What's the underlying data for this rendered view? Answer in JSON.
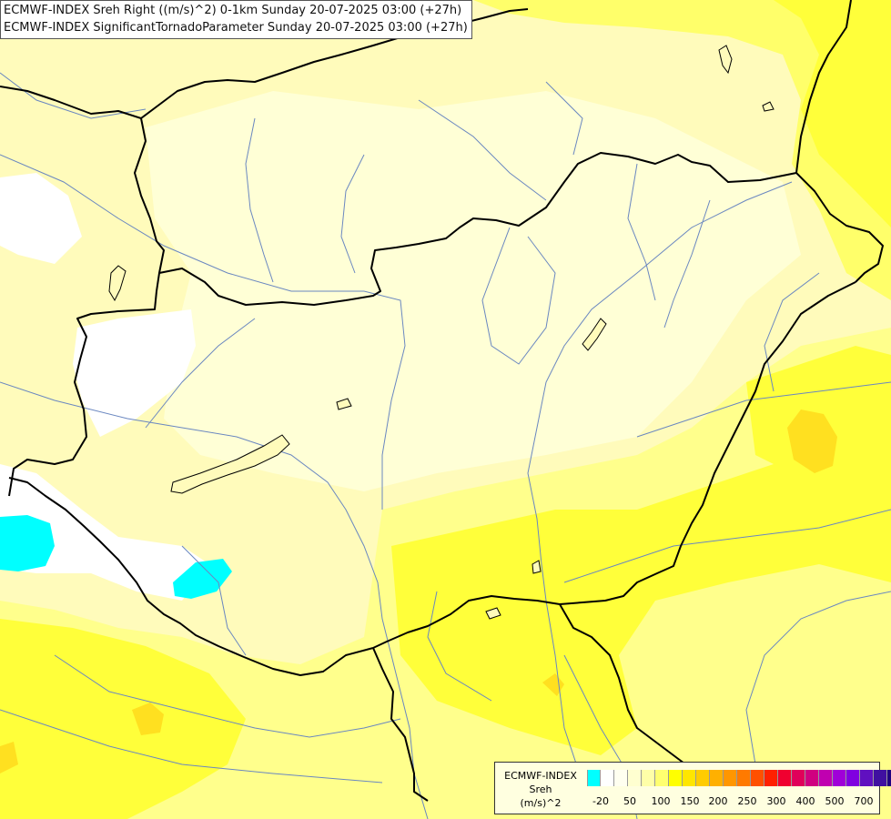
{
  "titles": {
    "line1": "ECMWF-INDEX Sreh Right ((m/s)^2) 0-1km Sunday 20-07-2025 03:00 (+27h)",
    "line2": "ECMWF-INDEX SignificantTornadoParameter Sunday 20-07-2025 03:00 (+27h)"
  },
  "legend": {
    "title_line1": "ECMWF-INDEX",
    "title_line2": "Sreh",
    "title_line3": "(m/s)^2",
    "colors": [
      "#00ffff",
      "#ffffff",
      "#fffff0",
      "#ffffd0",
      "#ffffa8",
      "#ffff70",
      "#ffff00",
      "#ffe600",
      "#ffcc00",
      "#ffb000",
      "#ff9600",
      "#ff7a00",
      "#ff5000",
      "#ff2000",
      "#f00030",
      "#e0005a",
      "#d00080",
      "#c000b0",
      "#a000d8",
      "#8000e0",
      "#6010c0",
      "#4010a0",
      "#200080"
    ],
    "ticks": [
      "-20",
      "50",
      "100",
      "150",
      "200",
      "250",
      "300",
      "400",
      "500",
      "700"
    ]
  },
  "colors": {
    "base_fill": "#fffbbb",
    "pale_fill": "#ffffd6",
    "mid_fill": "#ffff8c",
    "strong_fill": "#ffff3a",
    "orange_fill": "#ffe020",
    "white_fill": "#ffffff",
    "cyan_fill": "#00ffff",
    "border_color": "#000000",
    "river_color": "#6a87c0"
  }
}
